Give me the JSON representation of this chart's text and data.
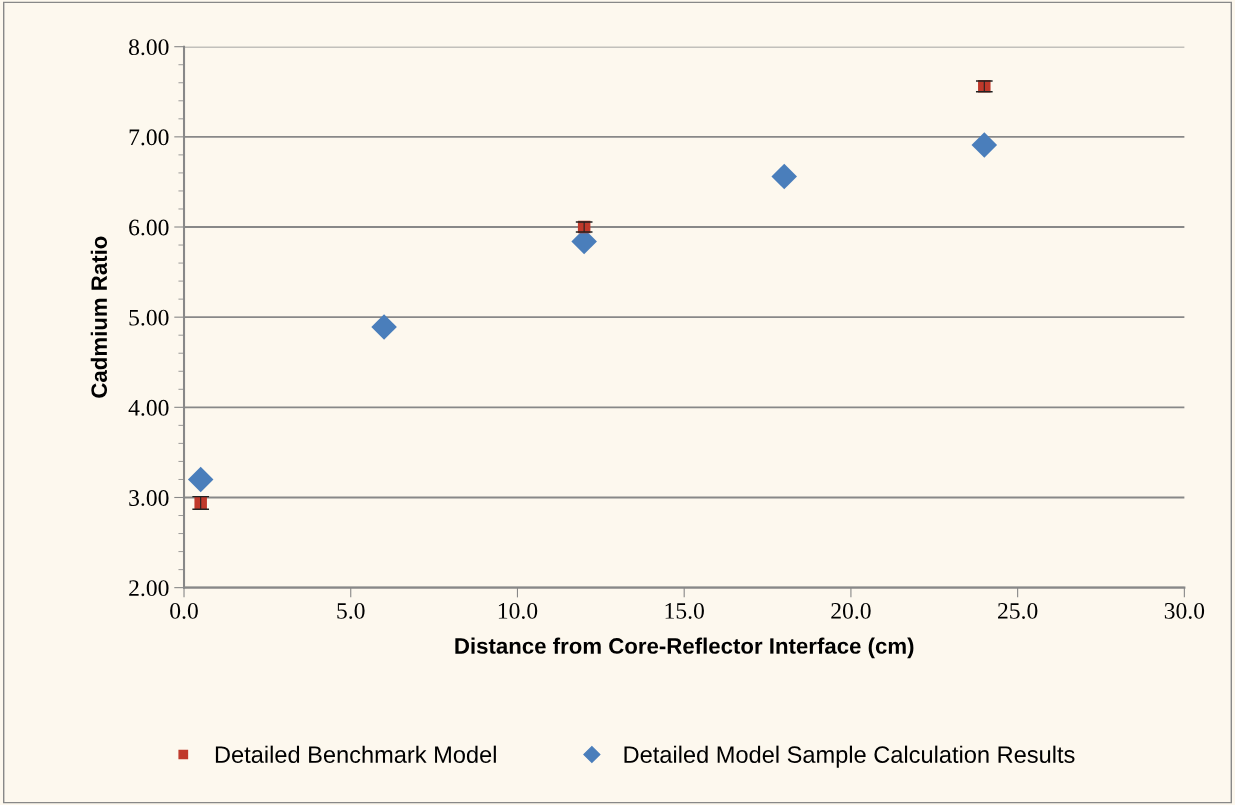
{
  "chart_data": {
    "type": "scatter",
    "xlabel": "Distance from Core-Reflector Interface (cm)",
    "ylabel": "Cadmium Ratio",
    "x": [
      0.5,
      6.0,
      12.0,
      18.0,
      24.0
    ],
    "series": [
      {
        "name": "Detailed Benchmark Model",
        "color": "#c0392b",
        "marker": "square",
        "values": [
          2.94,
          null,
          6.0,
          null,
          7.56
        ],
        "errors": [
          0.07,
          null,
          0.055,
          null,
          0.06
        ]
      },
      {
        "name": "Detailed Model Sample Calculation Results",
        "color": "#4a7ebb",
        "marker": "diamond",
        "values": [
          3.2,
          4.89,
          5.84,
          6.56,
          6.91
        ]
      }
    ],
    "xlim": [
      0,
      30
    ],
    "xticks": [
      {
        "value": 0,
        "label": "0.0"
      },
      {
        "value": 5,
        "label": "5.0"
      },
      {
        "value": 10,
        "label": "10.0"
      },
      {
        "value": 15,
        "label": "15.0"
      },
      {
        "value": 20,
        "label": "20.0"
      },
      {
        "value": 25,
        "label": "25.0"
      },
      {
        "value": 30,
        "label": "30.0"
      }
    ],
    "ylim": [
      2,
      8
    ],
    "yticks": [
      {
        "value": 2,
        "label": "2.00"
      },
      {
        "value": 3,
        "label": "3.00"
      },
      {
        "value": 4,
        "label": "4.00"
      },
      {
        "value": 5,
        "label": "5.00"
      },
      {
        "value": 6,
        "label": "6.00"
      },
      {
        "value": 7,
        "label": "7.00"
      },
      {
        "value": 8,
        "label": "8.00"
      }
    ],
    "grid": "y",
    "legend": "bottom"
  }
}
